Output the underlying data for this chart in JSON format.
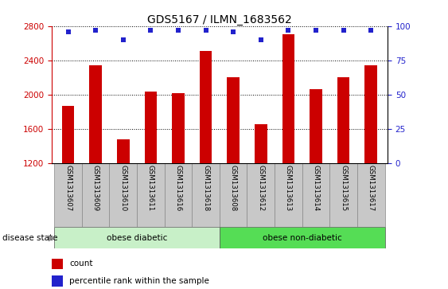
{
  "title": "GDS5167 / ILMN_1683562",
  "samples": [
    "GSM1313607",
    "GSM1313609",
    "GSM1313610",
    "GSM1313611",
    "GSM1313616",
    "GSM1313618",
    "GSM1313608",
    "GSM1313612",
    "GSM1313613",
    "GSM1313614",
    "GSM1313615",
    "GSM1313617"
  ],
  "counts": [
    1870,
    2340,
    1480,
    2040,
    2020,
    2510,
    2200,
    1660,
    2700,
    2060,
    2200,
    2340
  ],
  "percentile_ranks": [
    96,
    97,
    90,
    97,
    97,
    97,
    96,
    90,
    97,
    97,
    97,
    97
  ],
  "bar_color": "#cc0000",
  "dot_color": "#2222cc",
  "ylim_left": [
    1200,
    2800
  ],
  "ylim_right": [
    0,
    100
  ],
  "yticks_left": [
    1200,
    1600,
    2000,
    2400,
    2800
  ],
  "yticks_right": [
    0,
    25,
    50,
    75,
    100
  ],
  "groups": [
    {
      "label": "obese diabetic",
      "start": 0,
      "end": 6,
      "color": "#c8f0c8"
    },
    {
      "label": "obese non-diabetic",
      "start": 6,
      "end": 12,
      "color": "#55dd55"
    }
  ],
  "disease_state_label": "disease state",
  "legend_count_label": "count",
  "legend_pct_label": "percentile rank within the sample",
  "sample_box_color": "#c8c8c8",
  "title_fontsize": 10,
  "axis_fontsize": 7.5,
  "tick_label_fontsize": 7
}
